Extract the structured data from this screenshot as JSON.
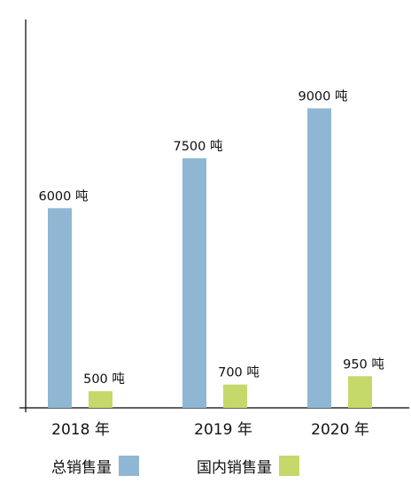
{
  "chart_data": {
    "type": "bar",
    "categories": [
      "2018 年",
      "2019 年",
      "2020 年"
    ],
    "series": [
      {
        "name": "总销售量",
        "values": [
          6000,
          7500,
          9000
        ],
        "labels": [
          "6000 吨",
          "7500 吨",
          "9000 吨"
        ],
        "color": "#8FB7D4"
      },
      {
        "name": "国内销售量",
        "values": [
          500,
          700,
          950
        ],
        "labels": [
          "500 吨",
          "700 吨",
          "950 吨"
        ],
        "color": "#C5D96B"
      }
    ],
    "unit": "吨",
    "title": "",
    "xlabel": "",
    "ylabel": "",
    "ylim": [
      0,
      10500
    ],
    "grid": false,
    "legend": "bottom"
  },
  "legend": {
    "items": [
      {
        "label": "总销售量",
        "color": "#8FB7D4"
      },
      {
        "label": "国内销售量",
        "color": "#C5D96B"
      }
    ]
  }
}
